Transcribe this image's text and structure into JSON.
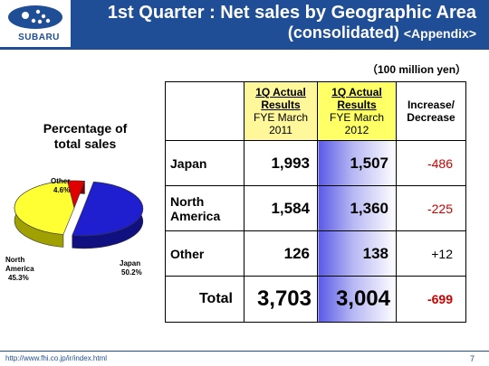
{
  "header": {
    "logo_text": "SUBARU",
    "title_line1": "1st Quarter : Net sales by Geographic Area",
    "title_line2_main": "(consolidated)",
    "title_line2_suffix": "<Appendix>"
  },
  "unit_label": "（100 million yen）",
  "pie": {
    "title_line1": "Percentage of",
    "title_line2": "total sales",
    "labels": {
      "other": "Other",
      "other_pct": "4.6%",
      "north_america_line1": "North",
      "north_america_line2": "America",
      "north_america_pct": "45.3%",
      "japan": "Japan",
      "japan_pct": "50.2%"
    }
  },
  "chart_data": [
    {
      "type": "pie",
      "title": "Percentage of total sales",
      "categories": [
        "Japan",
        "North America",
        "Other"
      ],
      "values": [
        50.2,
        45.3,
        4.6
      ],
      "colors": [
        "#1f1fd0",
        "#ffff33",
        "#e00000"
      ]
    },
    {
      "type": "table",
      "columns": [
        "",
        "1Q Actual Results FYE March 2011",
        "1Q Actual Results FYE March 2012",
        "Increase/ Decrease"
      ],
      "rows": [
        [
          "Japan",
          "1,993",
          "1,507",
          "-486"
        ],
        [
          "North America",
          "1,584",
          "1,360",
          "-225"
        ],
        [
          "Other",
          "126",
          "138",
          "+12"
        ],
        [
          "Total",
          "3,703",
          "3,004",
          "-699"
        ]
      ]
    }
  ],
  "table": {
    "col_2011": {
      "l1": "1Q Actual",
      "l2": "Results",
      "l3": "FYE March",
      "l4": "2011"
    },
    "col_2012": {
      "l1": "1Q Actual",
      "l2": "Results",
      "l3": "FYE March",
      "l4": "2012"
    },
    "col_inc": {
      "l1": "Increase/",
      "l2": "Decrease"
    },
    "rows": [
      {
        "label_l1": "Japan",
        "label_l2": "",
        "v2011": "1,993",
        "v2012": "1,507",
        "inc": "-486"
      },
      {
        "label_l1": "North",
        "label_l2": "America",
        "v2011": "1,584",
        "v2012": "1,360",
        "inc": "-225"
      },
      {
        "label_l1": "Other",
        "label_l2": "",
        "v2011": "126",
        "v2012": "138",
        "inc": "+12"
      }
    ],
    "total": {
      "label": "Total",
      "v2011": "3,703",
      "v2012": "3,004",
      "inc": "-699"
    }
  },
  "footer": {
    "url": "http://www.fhi.co.jp/ir/index.html",
    "page": "7"
  },
  "colors": {
    "brand_blue": "#1f4e96",
    "highlight_yellow": "#fff799",
    "negative_red": "#cc0000"
  }
}
